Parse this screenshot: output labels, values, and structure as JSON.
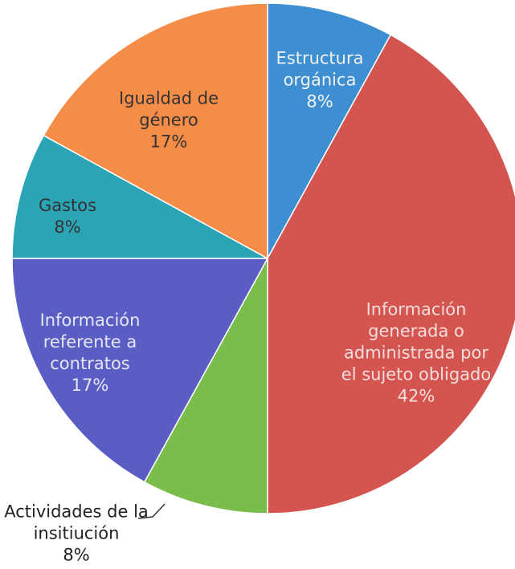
{
  "chart_data": {
    "type": "pie",
    "categories": [
      "Estructura orgánica",
      "Información generada o administrada por el sujeto obligado",
      "Actividades de la insitiución",
      "Información referente a contratos",
      "Gastos",
      "Igualdad de género"
    ],
    "values": [
      8,
      42,
      8,
      17,
      8,
      17
    ],
    "value_labels": [
      "8%",
      "42%",
      "8%",
      "17%",
      "8%",
      "17%"
    ],
    "colors": [
      "#3d8fd2",
      "#d4544f",
      "#7bbd4b",
      "#5a5ec4",
      "#2ba5b5",
      "#f58c48"
    ]
  }
}
